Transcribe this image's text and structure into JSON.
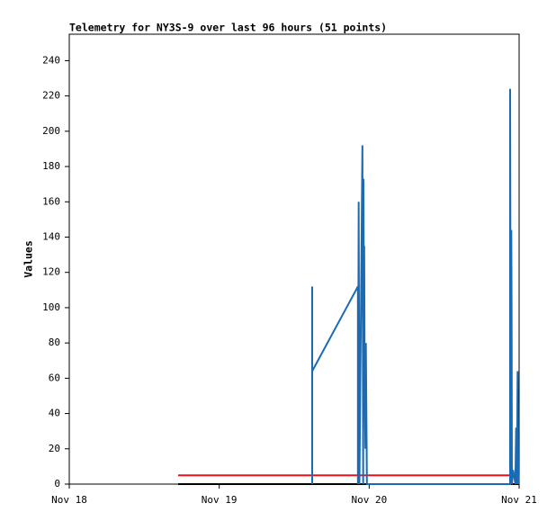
{
  "chart_data": {
    "type": "line",
    "title": "Telemetry for NY3S-9 over last 96 hours (51 points)",
    "y_label": "Values",
    "xlim": [
      18,
      21
    ],
    "xticks": [
      {
        "value": 18,
        "label": "Nov 18"
      },
      {
        "value": 19,
        "label": "Nov 19"
      },
      {
        "value": 20,
        "label": "Nov 20"
      },
      {
        "value": 21,
        "label": "Nov 21"
      }
    ],
    "ylim": [
      0,
      255
    ],
    "yticks": [
      0,
      20,
      40,
      60,
      80,
      100,
      120,
      140,
      160,
      180,
      200,
      220,
      240
    ],
    "grid": false,
    "series": [
      {
        "color": "#000000",
        "x": [
          18.726,
          21
        ],
        "values": [
          0,
          0
        ]
      },
      {
        "color": "#e8121a",
        "x": [
          18.726,
          21
        ],
        "values": [
          5,
          5
        ]
      },
      {
        "color": "#1a6ab4",
        "x": [
          19.62,
          19.62,
          19.62,
          19.925,
          19.925,
          19.93,
          19.935,
          19.955,
          19.96,
          19.962,
          19.965,
          19.967,
          19.97,
          19.975,
          19.978,
          19.985,
          20.94,
          20.94,
          20.945,
          20.948,
          20.95,
          20.952,
          20.96,
          20.975,
          20.98,
          20.985,
          20.99,
          20.995
        ],
        "values": [
          0,
          112,
          64,
          112,
          0,
          160,
          0,
          192,
          0,
          173,
          97,
          135,
          58,
          20,
          80,
          0,
          0,
          224,
          0,
          144,
          97,
          0,
          8,
          0,
          32,
          0,
          64,
          0
        ]
      }
    ]
  }
}
